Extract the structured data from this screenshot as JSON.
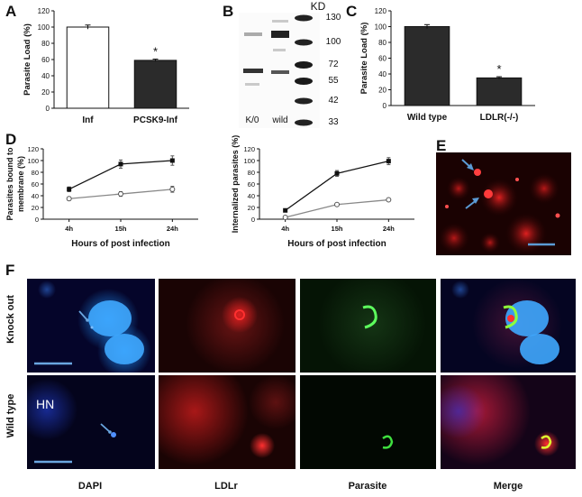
{
  "panels": {
    "a": "A",
    "b": "B",
    "c": "C",
    "d": "D",
    "e": "E",
    "f": "F"
  },
  "chart_data": [
    {
      "id": "A",
      "type": "bar",
      "ylabel": "Parasite Load (%)",
      "ylim": [
        0,
        120
      ],
      "yticks": [
        0,
        20,
        40,
        60,
        80,
        100,
        120
      ],
      "categories": [
        "Inf",
        "PCSK9-Inf"
      ],
      "values": [
        100,
        59
      ],
      "errors": [
        2.5,
        1.5
      ],
      "bar_colors": [
        "#ffffff",
        "#2b2b2b"
      ],
      "annotations": [
        "",
        "*"
      ]
    },
    {
      "id": "C",
      "type": "bar",
      "ylabel": "Parasite Load (%)",
      "ylim": [
        0,
        120
      ],
      "yticks": [
        0,
        20,
        40,
        60,
        80,
        100,
        120
      ],
      "categories": [
        "Wild type",
        "LDLR(-/-)"
      ],
      "values": [
        100,
        35
      ],
      "errors": [
        2.5,
        1.5
      ],
      "bar_colors": [
        "#2b2b2b",
        "#2b2b2b"
      ],
      "annotations": [
        "",
        "*"
      ]
    },
    {
      "id": "D1",
      "type": "line",
      "ylabel": "Parasites bound to membrane (%)",
      "ylabel_lines": [
        "Parasites bound to",
        "membrane (%)"
      ],
      "xlabel": "Hours of post infection",
      "ylim": [
        0,
        120
      ],
      "yticks": [
        0,
        20,
        40,
        60,
        80,
        100,
        120
      ],
      "categories": [
        "4h",
        "15h",
        "24h"
      ],
      "series": [
        {
          "marker": "filled",
          "values": [
            51,
            94,
            100
          ],
          "errors": [
            4,
            7,
            8
          ]
        },
        {
          "marker": "open",
          "values": [
            35,
            43,
            51
          ],
          "errors": [
            3,
            4,
            5
          ]
        }
      ]
    },
    {
      "id": "D2",
      "type": "line",
      "ylabel": "Internalized parasites (%)",
      "xlabel": "Hours of post infection",
      "ylim": [
        0,
        120
      ],
      "yticks": [
        0,
        20,
        40,
        60,
        80,
        100,
        120
      ],
      "categories": [
        "4h",
        "15h",
        "24h"
      ],
      "series": [
        {
          "marker": "filled",
          "values": [
            15,
            78,
            99
          ],
          "errors": [
            1,
            5,
            6
          ]
        },
        {
          "marker": "open",
          "values": [
            3,
            25,
            33
          ],
          "errors": [
            1,
            2,
            2
          ]
        }
      ]
    }
  ],
  "blot": {
    "kd_title": "KD",
    "markers": [
      "130",
      "100",
      "72",
      "55",
      "42",
      "33"
    ],
    "lanes": [
      "K/0",
      "wild"
    ]
  },
  "panel_f": {
    "rows": [
      "Knock out",
      "Wild type"
    ],
    "columns": [
      "DAPI",
      "LDLr",
      "Parasite",
      "Merge"
    ],
    "hn_label": "HN"
  }
}
